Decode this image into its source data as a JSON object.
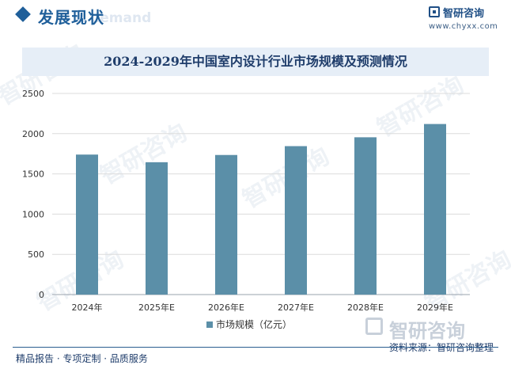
{
  "header": {
    "section_title": "发展现状",
    "section_ghost": "d demand",
    "brand_name": "智研咨询",
    "brand_url": "www.chyxx.com"
  },
  "watermark_text": "智研咨询",
  "chart_data": {
    "type": "bar",
    "title": "2024-2029年中国室内设计行业市场规模及预测情况",
    "categories": [
      "2024年",
      "2025年E",
      "2026年E",
      "2027年E",
      "2028年E",
      "2029年E"
    ],
    "series": [
      {
        "name": "市场规模（亿元）",
        "values": [
          1740,
          1645,
          1735,
          1845,
          1955,
          2120
        ]
      }
    ],
    "ylim": [
      0,
      2500
    ],
    "yticks": [
      0,
      500,
      1000,
      1500,
      2000,
      2500
    ],
    "ytick_labels": [
      "0",
      "500",
      "1000",
      "1500",
      "2000",
      "2500"
    ],
    "grid": true,
    "legend": "bottom",
    "bar_color": "#5b8fa8"
  },
  "footer": {
    "left": "精品报告 · 专项定制 · 品质服务",
    "source": "资料来源：智研咨询整理",
    "brand": "智研咨询"
  }
}
